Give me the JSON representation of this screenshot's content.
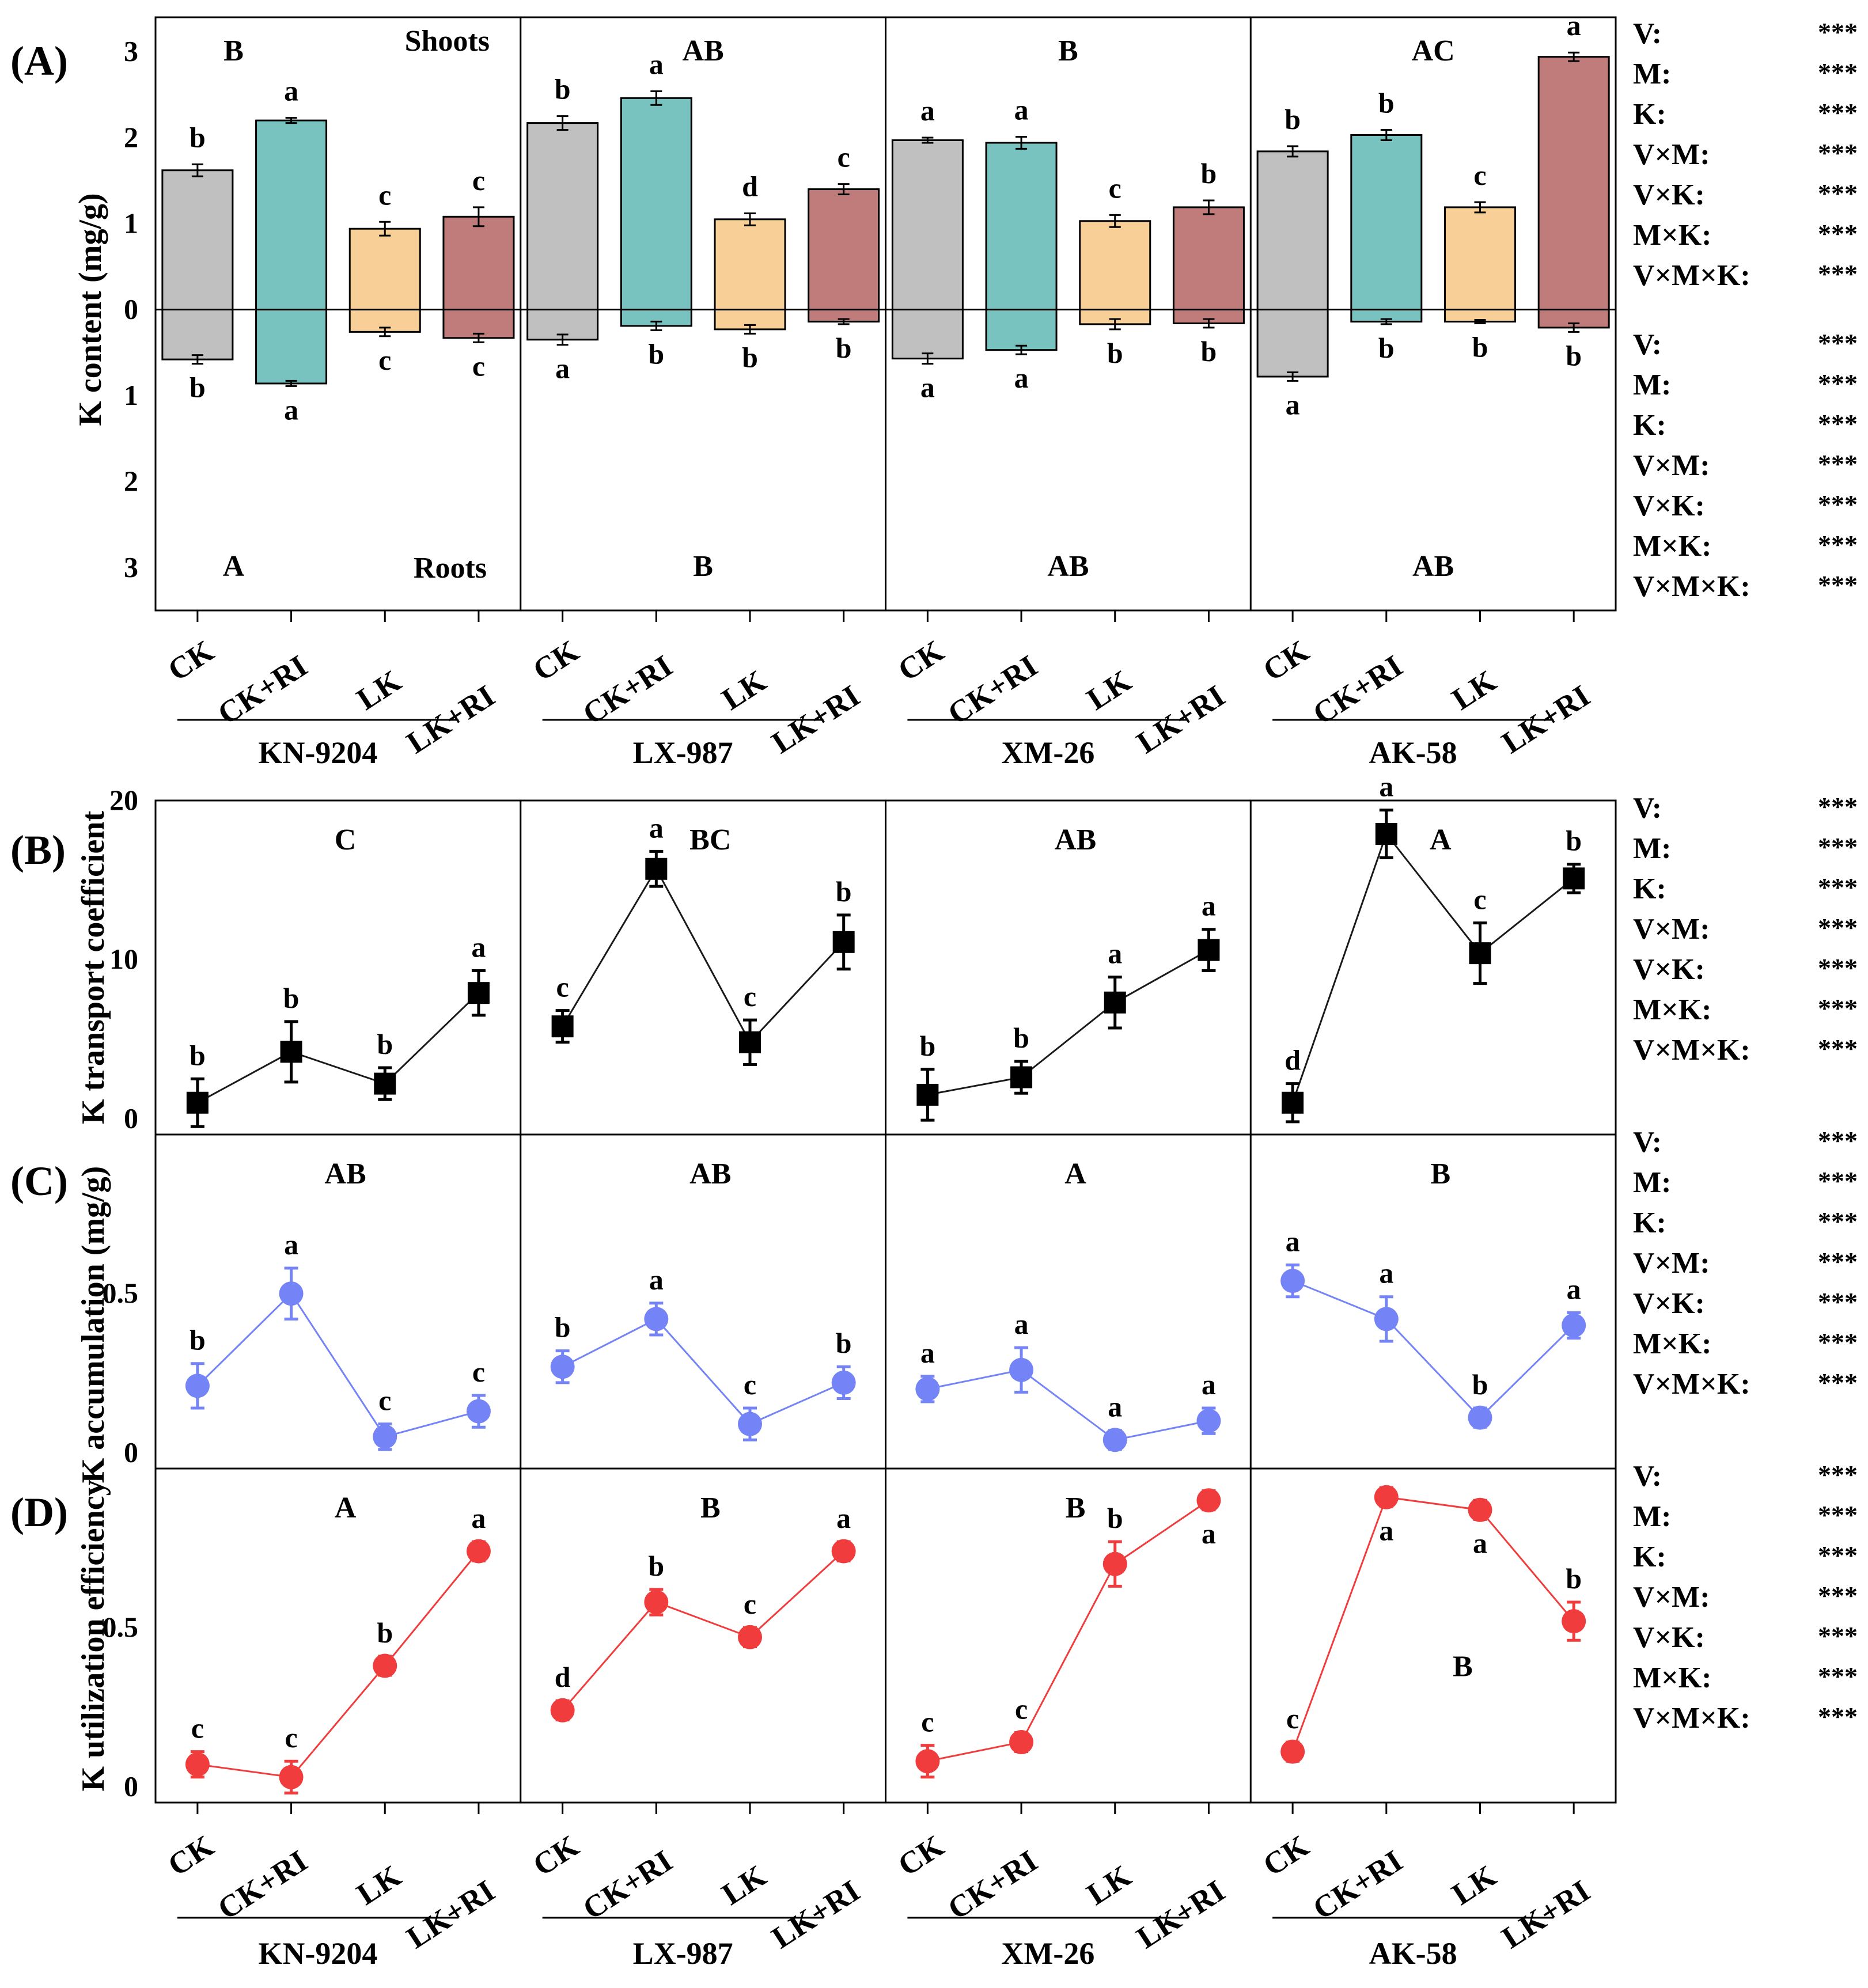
{
  "colors": {
    "CK": "#c0c0c0",
    "CK+RI": "#78c2c0",
    "LK": "#f8cf96",
    "LK+RI": "#c07c7a",
    "black": "#000000",
    "B_line": "#1a1a1a",
    "C_series": "#7484f6",
    "D_series": "#f03c3c"
  },
  "varieties": [
    "KN-9204",
    "LX-987",
    "XM-26",
    "AK-58"
  ],
  "treatments": [
    "CK",
    "CK+RI",
    "LK",
    "LK+RI"
  ],
  "panel_labels": {
    "A": "(A)",
    "B": "(B)",
    "C": "(C)",
    "D": "(D)"
  },
  "stats": {
    "labels": [
      "V:",
      "M:",
      "K:",
      "V×M:",
      "V×K:",
      "M×K:",
      "V×M×K:"
    ],
    "values": [
      "***",
      "***",
      "***",
      "***",
      "***",
      "***",
      "***"
    ]
  },
  "chart_data": [
    {
      "id": "A",
      "type": "bar",
      "title": "(A)",
      "ylabel": "K content (mg/g)",
      "shoots_label": "Shoots",
      "roots_label": "Roots",
      "ylim": [
        -3.5,
        3.4
      ],
      "yticks": [
        {
          "v": 3,
          "t": "3"
        },
        {
          "v": 2,
          "t": "2"
        },
        {
          "v": 1,
          "t": "1"
        },
        {
          "v": 0,
          "t": "0"
        },
        {
          "v": -1,
          "t": "1"
        },
        {
          "v": -2,
          "t": "2"
        },
        {
          "v": -3,
          "t": "3"
        }
      ],
      "categories": [
        "CK",
        "CK+RI",
        "LK",
        "LK+RI"
      ],
      "groups": [
        {
          "name": "KN-9204",
          "shoot_group_letter": "B",
          "root_group_letter": "A",
          "shoots": [
            1.62,
            2.2,
            0.94,
            1.08
          ],
          "shoot_err": [
            0.07,
            0.03,
            0.08,
            0.11
          ],
          "shoot_letters": [
            "b",
            "a",
            "c",
            "c"
          ],
          "roots": [
            0.58,
            0.86,
            0.26,
            0.33
          ],
          "root_err": [
            0.05,
            0.03,
            0.05,
            0.05
          ],
          "root_letters": [
            "b",
            "a",
            "c",
            "c"
          ]
        },
        {
          "name": "LX-987",
          "shoot_group_letter": "AB",
          "root_group_letter": "B",
          "shoots": [
            2.17,
            2.46,
            1.05,
            1.4
          ],
          "shoot_err": [
            0.08,
            0.08,
            0.07,
            0.06
          ],
          "shoot_letters": [
            "b",
            "a",
            "d",
            "c"
          ],
          "roots": [
            0.35,
            0.19,
            0.23,
            0.14
          ],
          "root_err": [
            0.06,
            0.05,
            0.05,
            0.03
          ],
          "root_letters": [
            "a",
            "b",
            "b",
            "b"
          ]
        },
        {
          "name": "XM-26",
          "shoot_group_letter": "B",
          "root_group_letter": "AB",
          "shoots": [
            1.97,
            1.94,
            1.03,
            1.19
          ],
          "shoot_err": [
            0.03,
            0.07,
            0.07,
            0.08
          ],
          "shoot_letters": [
            "a",
            "a",
            "c",
            "b"
          ],
          "roots": [
            0.57,
            0.47,
            0.17,
            0.16
          ],
          "root_err": [
            0.06,
            0.05,
            0.06,
            0.05
          ],
          "root_letters": [
            "a",
            "a",
            "b",
            "b"
          ]
        },
        {
          "name": "AK-58",
          "shoot_group_letter": "AC",
          "root_group_letter": "AB",
          "shoots": [
            1.84,
            2.03,
            1.19,
            2.94
          ],
          "shoot_err": [
            0.06,
            0.06,
            0.06,
            0.05
          ],
          "shoot_letters": [
            "b",
            "b",
            "c",
            "a"
          ],
          "roots": [
            0.78,
            0.14,
            0.14,
            0.21
          ],
          "root_err": [
            0.05,
            0.03,
            0.02,
            0.05
          ],
          "root_letters": [
            "a",
            "b",
            "b",
            "b"
          ]
        }
      ]
    },
    {
      "id": "B",
      "type": "line",
      "title": "(B)",
      "ylabel": "K transport coefficient",
      "marker": "square",
      "ylim": [
        -1,
        20
      ],
      "yticks": [
        {
          "v": 0,
          "t": "0"
        },
        {
          "v": 10,
          "t": "10"
        },
        {
          "v": 20,
          "t": "20"
        }
      ],
      "groups": [
        {
          "name": "KN-9204",
          "group_letter": "C",
          "values": [
            1.0,
            4.2,
            2.2,
            7.9
          ],
          "err": [
            1.5,
            1.9,
            1.0,
            1.4
          ],
          "letters": [
            "b",
            "b",
            "b",
            "a"
          ]
        },
        {
          "name": "LX-987",
          "group_letter": "BC",
          "values": [
            5.8,
            15.7,
            4.8,
            11.1
          ],
          "err": [
            1.0,
            1.1,
            1.4,
            1.7
          ],
          "letters": [
            "c",
            "a",
            "c",
            "b"
          ]
        },
        {
          "name": "XM-26",
          "group_letter": "AB",
          "values": [
            1.5,
            2.6,
            7.3,
            10.6
          ],
          "err": [
            1.6,
            1.0,
            1.6,
            1.3
          ],
          "letters": [
            "b",
            "b",
            "a",
            "a"
          ]
        },
        {
          "name": "AK-58",
          "group_letter": "A",
          "values": [
            1.0,
            17.9,
            10.4,
            15.1
          ],
          "err": [
            1.2,
            1.5,
            1.9,
            0.9
          ],
          "letters": [
            "d",
            "a",
            "c",
            "b"
          ]
        }
      ]
    },
    {
      "id": "C",
      "type": "line",
      "title": "(C)",
      "ylabel": "K accumulation (mg/g)",
      "marker": "circle",
      "ylim": [
        -0.05,
        1.0
      ],
      "yticks": [
        {
          "v": 0,
          "t": "0"
        },
        {
          "v": 0.5,
          "t": "0.5"
        }
      ],
      "groups": [
        {
          "name": "KN-9204",
          "group_letter": "AB",
          "values": [
            0.21,
            0.5,
            0.05,
            0.13
          ],
          "err": [
            0.07,
            0.08,
            0.04,
            0.05
          ],
          "letters": [
            "b",
            "a",
            "c",
            "c"
          ]
        },
        {
          "name": "LX-987",
          "group_letter": "AB",
          "values": [
            0.27,
            0.42,
            0.09,
            0.22
          ],
          "err": [
            0.05,
            0.05,
            0.05,
            0.05
          ],
          "letters": [
            "b",
            "a",
            "c",
            "b"
          ]
        },
        {
          "name": "XM-26",
          "group_letter": "A",
          "values": [
            0.2,
            0.26,
            0.04,
            0.1
          ],
          "err": [
            0.04,
            0.07,
            0.03,
            0.04
          ],
          "letters": [
            "a",
            "a",
            "a",
            "a"
          ]
        },
        {
          "name": "AK-58",
          "group_letter": "B",
          "values": [
            0.54,
            0.42,
            0.11,
            0.4
          ],
          "err": [
            0.05,
            0.07,
            0.03,
            0.04
          ],
          "letters": [
            "a",
            "a",
            "b",
            "a"
          ]
        }
      ]
    },
    {
      "id": "D",
      "type": "line",
      "title": "(D)",
      "ylabel": "K utilization efficiency",
      "marker": "circle",
      "ylim": [
        -0.05,
        1.0
      ],
      "yticks": [
        {
          "v": 0,
          "t": "0"
        },
        {
          "v": 0.5,
          "t": "0.5"
        }
      ],
      "groups": [
        {
          "name": "KN-9204",
          "group_letter": "A",
          "values": [
            0.07,
            0.03,
            0.38,
            0.74
          ],
          "err": [
            0.04,
            0.05,
            0.03,
            0.03
          ],
          "letters": [
            "c",
            "c",
            "b",
            "a"
          ],
          "letter_below": [
            false,
            false,
            false,
            false
          ]
        },
        {
          "name": "LX-987",
          "group_letter": "B",
          "values": [
            0.24,
            0.58,
            0.47,
            0.74
          ],
          "err": [
            0.03,
            0.04,
            0.03,
            0.03
          ],
          "letters": [
            "d",
            "b",
            "c",
            "a"
          ],
          "letter_below": [
            false,
            false,
            false,
            false
          ]
        },
        {
          "name": "XM-26",
          "group_letter": "B",
          "values": [
            0.08,
            0.14,
            0.7,
            0.9
          ],
          "err": [
            0.05,
            0.03,
            0.07,
            0.03
          ],
          "letters": [
            "c",
            "c",
            "b",
            "a"
          ],
          "letter_below": [
            false,
            false,
            false,
            true
          ]
        },
        {
          "name": "AK-58",
          "group_letter": "B",
          "values": [
            0.11,
            0.91,
            0.87,
            0.52
          ],
          "err": [
            0.03,
            0.03,
            0.03,
            0.06
          ],
          "letters": [
            "c",
            "a",
            "a",
            "b"
          ],
          "letter_below": [
            false,
            true,
            true,
            false
          ],
          "group_letter_value": 0.38
        }
      ]
    }
  ]
}
